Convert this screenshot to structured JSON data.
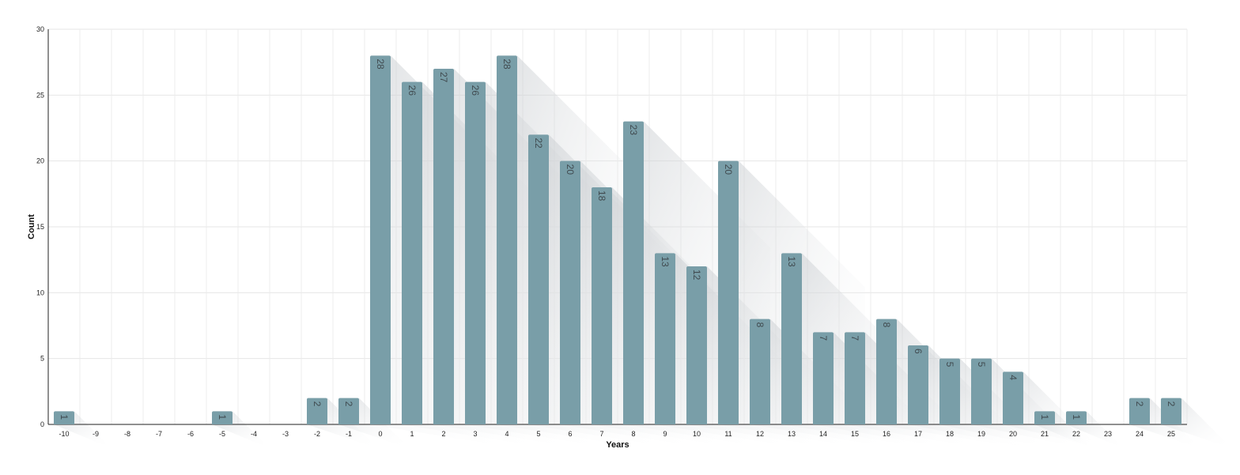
{
  "chart_data": {
    "type": "bar",
    "categories": [
      "-10",
      "-9",
      "-8",
      "-7",
      "-6",
      "-5",
      "-4",
      "-3",
      "-2",
      "-1",
      "0",
      "1",
      "2",
      "3",
      "4",
      "5",
      "6",
      "7",
      "8",
      "9",
      "10",
      "11",
      "12",
      "13",
      "14",
      "15",
      "16",
      "17",
      "18",
      "19",
      "20",
      "21",
      "22",
      "23",
      "24",
      "25"
    ],
    "values": [
      1,
      0,
      0,
      0,
      0,
      1,
      0,
      0,
      2,
      2,
      28,
      26,
      27,
      26,
      28,
      22,
      20,
      18,
      23,
      13,
      12,
      20,
      8,
      13,
      7,
      7,
      8,
      6,
      5,
      5,
      4,
      1,
      1,
      0,
      2,
      2
    ],
    "title": "",
    "xlabel": "Years",
    "ylabel": "Count",
    "ylim": [
      0,
      30
    ],
    "yticks": [
      0,
      5,
      10,
      15,
      20,
      25,
      30
    ],
    "grid": true,
    "legend": "none",
    "bar_color": "#799ea8",
    "label_color": "#404a4f"
  }
}
